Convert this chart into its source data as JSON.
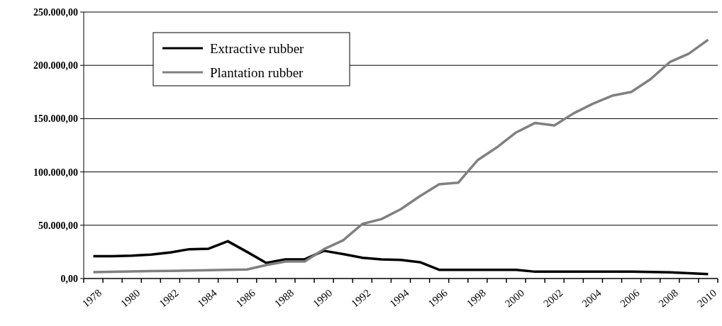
{
  "chart_data": {
    "type": "line",
    "categories": [
      "1978",
      null,
      "1980",
      null,
      "1982",
      null,
      "1984",
      null,
      "1986",
      null,
      "1988",
      null,
      "1990",
      null,
      "1992",
      null,
      "1994",
      null,
      "1996",
      null,
      "1998",
      null,
      "2000",
      null,
      "2002",
      null,
      "2004",
      null,
      "2006",
      null,
      "2008",
      null,
      "2010"
    ],
    "series": [
      {
        "name": "Extractive rubber",
        "color": "#000000",
        "values": [
          21000,
          21000,
          21500,
          22500,
          24500,
          27500,
          28000,
          35000,
          25000,
          14600,
          18000,
          18000,
          26000,
          23000,
          19500,
          18000,
          17500,
          15300,
          8200,
          8200,
          8200,
          8200,
          8200,
          6400,
          6500,
          6500,
          6500,
          6500,
          6500,
          6200,
          5800,
          5000,
          4200
        ]
      },
      {
        "name": "Plantation rubber",
        "color": "#808080",
        "values": [
          6000,
          6300,
          6600,
          6900,
          7200,
          7500,
          7800,
          8100,
          8500,
          12600,
          16000,
          16000,
          27500,
          35800,
          51200,
          55800,
          65000,
          77300,
          88400,
          90000,
          111000,
          123000,
          137000,
          146000,
          143600,
          155000,
          164000,
          171500,
          175000,
          187000,
          203000,
          211000,
          224000
        ]
      }
    ],
    "ylim": [
      0,
      250000
    ],
    "yticks": [
      {
        "value": 0,
        "label": "0,00"
      },
      {
        "value": 50000,
        "label": "50.000,00"
      },
      {
        "value": 100000,
        "label": "100.000,00"
      },
      {
        "value": 150000,
        "label": "150.000,00"
      },
      {
        "value": 200000,
        "label": "200.000,00"
      },
      {
        "value": 250000,
        "label": "250.000,00"
      }
    ],
    "grid": "y",
    "legend": "top left",
    "line_style": "solid",
    "marker": "none"
  }
}
